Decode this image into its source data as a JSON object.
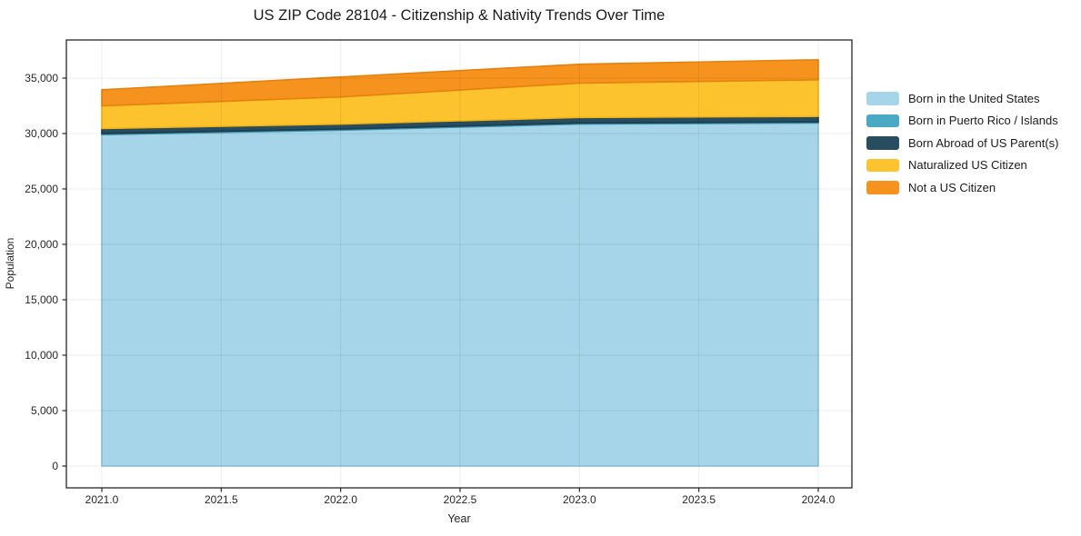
{
  "title": "US ZIP Code 28104 - Citizenship & Nativity Trends Over Time",
  "axes": {
    "xlabel": "Year",
    "ylabel": "Population",
    "x_tick_labels": [
      "2021.0",
      "2021.5",
      "2022.0",
      "2022.5",
      "2023.0",
      "2023.5",
      "2024.0"
    ],
    "y_tick_labels": [
      "0",
      "5,000",
      "10,000",
      "15,000",
      "20,000",
      "25,000",
      "30,000",
      "35,000"
    ]
  },
  "legend": {
    "position": "right-outside",
    "items": [
      {
        "label": "Born in the United States",
        "color": "#a6d4e8"
      },
      {
        "label": "Born in Puerto Rico / Islands",
        "color": "#4aa9c4"
      },
      {
        "label": "Born Abroad of US Parent(s)",
        "color": "#284d60"
      },
      {
        "label": "Naturalized US Citizen",
        "color": "#fdc32e"
      },
      {
        "label": "Not a US Citizen",
        "color": "#f6931e"
      }
    ]
  },
  "chart_data": {
    "type": "area",
    "stacked": true,
    "title": "US ZIP Code 28104 - Citizenship & Nativity Trends Over Time",
    "xlabel": "Year",
    "ylabel": "Population",
    "x": [
      2021,
      2022,
      2023,
      2024
    ],
    "series": [
      {
        "name": "Born in the United States",
        "color": "#a6d4e8",
        "edge_color": "#8ec4db",
        "values": [
          29900,
          30300,
          30850,
          30950
        ]
      },
      {
        "name": "Born in Puerto Rico / Islands",
        "color": "#4aa9c4",
        "edge_color": "#3b93ad",
        "values": [
          100,
          100,
          100,
          100
        ]
      },
      {
        "name": "Born Abroad of US Parent(s)",
        "color": "#284d60",
        "edge_color": "#1c3b4b",
        "values": [
          450,
          450,
          500,
          500
        ]
      },
      {
        "name": "Naturalized US Citizen",
        "color": "#fdc32e",
        "edge_color": "#f2b414",
        "values": [
          2050,
          2450,
          3100,
          3300
        ]
      },
      {
        "name": "Not a US Citizen",
        "color": "#f6931e",
        "edge_color": "#e5820e",
        "values": [
          1450,
          1800,
          1700,
          1800
        ]
      }
    ],
    "x_tick_values": [
      2021.0,
      2021.5,
      2022.0,
      2022.5,
      2023.0,
      2023.5,
      2024.0
    ],
    "y_tick_values": [
      0,
      5000,
      10000,
      15000,
      20000,
      25000,
      30000,
      35000
    ],
    "xlim": [
      2020.8515,
      2024.1409
    ],
    "ylim": [
      -1970,
      38440
    ],
    "grid": true,
    "legend_position": "right"
  }
}
